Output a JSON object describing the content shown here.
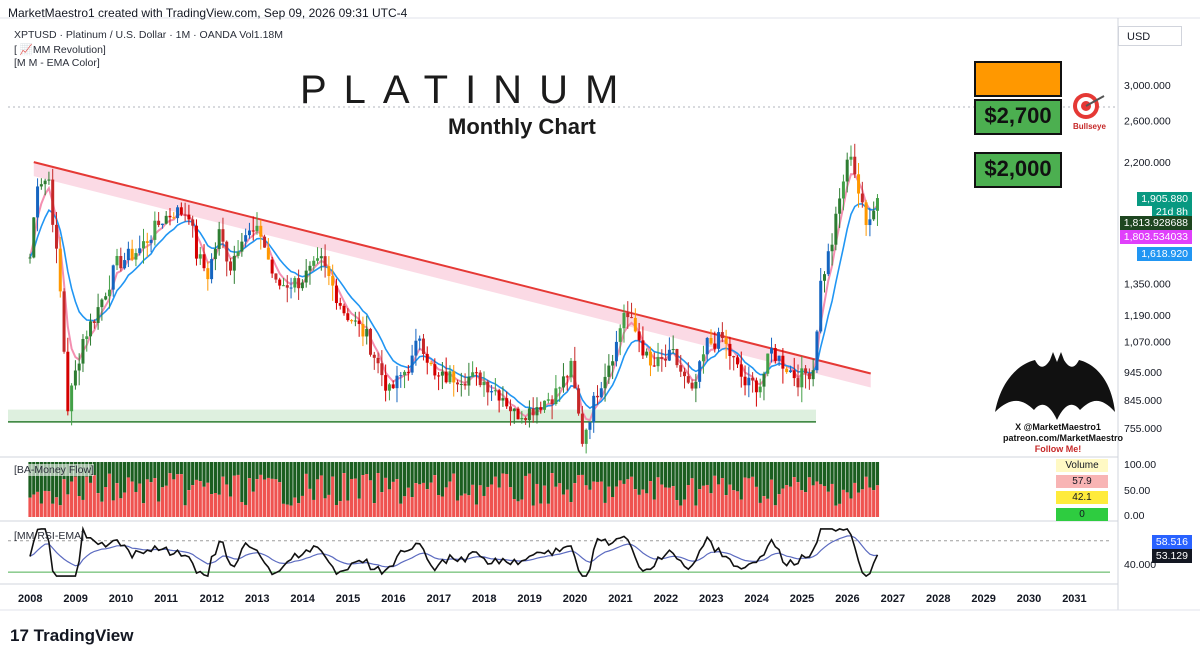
{
  "header": {
    "author_line": "MarketMaestro1 created with TradingView.com, Sep 09, 2026 09:31 UTC-4",
    "symbol_line": "XPTUSD · Platinum / U.S. Dollar · 1M · OANDA  Vol1.18M",
    "indicator_1": "[ 📈MM Revolution]",
    "indicator_2": "[M M - EMA Color]",
    "currency": "USD"
  },
  "overlay": {
    "title": "PLATINUM",
    "subtitle": "Monthly Chart",
    "target_top": "",
    "target_mid": "$2,700",
    "target_low": "$2,000",
    "bullseye_label": "Bullseye",
    "bat_lines": [
      "X @MarketMaestro1",
      "patreon.com/MarketMaestro",
      "Follow Me!"
    ]
  },
  "price_axis": {
    "ticks": [
      "3,000.000",
      "2,600.000",
      "2,200.000",
      "1,350.000",
      "1,190.000",
      "1,070.000",
      "945.000",
      "845.000",
      "755.000"
    ],
    "tick_values": [
      3000,
      2600,
      2200,
      1350,
      1190,
      1070,
      945,
      845,
      755
    ],
    "pills": [
      {
        "label": "1,905.880",
        "color": "#089981"
      },
      {
        "label": "21d 8h",
        "color": "#089981"
      },
      {
        "label": "1,813.928688",
        "color": "#1e4620"
      },
      {
        "label": "1,803.534033",
        "color": "#e040fb"
      },
      {
        "label": "1,618.920",
        "color": "#2196f3"
      }
    ]
  },
  "money_flow": {
    "title": "[BA-Money Flow]",
    "ticks": [
      "100.00",
      "50.00",
      "0.00"
    ],
    "volume_label": "Volume",
    "cells": [
      "57.9",
      "42.1",
      "0"
    ],
    "cell_colors": [
      "#f8b4b4",
      "#ffeb3b",
      "#2ecc40"
    ]
  },
  "rsi": {
    "title": "[MM RSI-EMA]",
    "ticks": [
      "40.000"
    ],
    "rsi_value": "58.516",
    "ema_value": "53.129"
  },
  "years": [
    "2008",
    "2009",
    "2010",
    "2011",
    "2012",
    "2013",
    "2014",
    "2015",
    "2016",
    "2017",
    "2018",
    "2019",
    "2020",
    "2021",
    "2022",
    "2023",
    "2024",
    "2025",
    "2026",
    "2027",
    "2028",
    "2029",
    "2030",
    "2031"
  ],
  "footer": {
    "logo": "TradingView"
  },
  "chart_data": {
    "type": "candlestick",
    "title": "PLATINUM",
    "subtitle": "Monthly Chart",
    "symbol": "XPTUSD",
    "timeframe": "1M",
    "y_scale": "log",
    "ylim": [
      700,
      3200
    ],
    "xlim": [
      "2007-10",
      "2031-06"
    ],
    "last_close": 1905.88,
    "ema_values": [
      1813.928688,
      1803.534033,
      1618.92
    ],
    "targets": [
      2700,
      2000
    ],
    "support_level": 780,
    "trendline": {
      "from": [
        "2008-02",
        2200
      ],
      "to": [
        "2025-06",
        940
      ]
    },
    "series": [
      {
        "name": "close",
        "points": [
          [
            "2008-01",
            1500
          ],
          [
            "2008-03",
            2050
          ],
          [
            "2008-06",
            2050
          ],
          [
            "2008-09",
            1300
          ],
          [
            "2008-11",
            820
          ],
          [
            "2009-03",
            1080
          ],
          [
            "2009-06",
            1180
          ],
          [
            "2009-12",
            1460
          ],
          [
            "2010-06",
            1550
          ],
          [
            "2010-12",
            1750
          ],
          [
            "2011-03",
            1800
          ],
          [
            "2011-07",
            1800
          ],
          [
            "2011-09",
            1520
          ],
          [
            "2011-12",
            1400
          ],
          [
            "2012-03",
            1650
          ],
          [
            "2012-06",
            1450
          ],
          [
            "2012-09",
            1650
          ],
          [
            "2013-02",
            1650
          ],
          [
            "2013-06",
            1340
          ],
          [
            "2013-12",
            1360
          ],
          [
            "2014-06",
            1470
          ],
          [
            "2014-12",
            1210
          ],
          [
            "2015-06",
            1090
          ],
          [
            "2015-12",
            870
          ],
          [
            "2016-06",
            990
          ],
          [
            "2016-08",
            1100
          ],
          [
            "2016-12",
            920
          ],
          [
            "2017-06",
            930
          ],
          [
            "2017-12",
            920
          ],
          [
            "2018-06",
            860
          ],
          [
            "2018-09",
            800
          ],
          [
            "2019-01",
            810
          ],
          [
            "2019-08",
            870
          ],
          [
            "2019-12",
            960
          ],
          [
            "2020-03",
            720
          ],
          [
            "2020-07",
            880
          ],
          [
            "2020-12",
            1060
          ],
          [
            "2021-02",
            1210
          ],
          [
            "2021-06",
            1080
          ],
          [
            "2021-09",
            960
          ],
          [
            "2022-03",
            1010
          ],
          [
            "2022-08",
            860
          ],
          [
            "2022-12",
            1060
          ],
          [
            "2023-04",
            1080
          ],
          [
            "2023-10",
            900
          ],
          [
            "2024-02",
            900
          ],
          [
            "2024-05",
            1030
          ],
          [
            "2024-12",
            920
          ],
          [
            "2025-04",
            960
          ],
          [
            "2025-06",
            1350
          ],
          [
            "2025-09",
            1600
          ],
          [
            "2025-12",
            2050
          ],
          [
            "2026-02",
            2300
          ],
          [
            "2026-04",
            1950
          ],
          [
            "2026-06",
            1700
          ],
          [
            "2026-07",
            1800
          ],
          [
            "2026-09",
            1905.88
          ]
        ]
      }
    ],
    "money_flow_range": [
      0,
      100
    ],
    "rsi_range": [
      20,
      90
    ]
  }
}
